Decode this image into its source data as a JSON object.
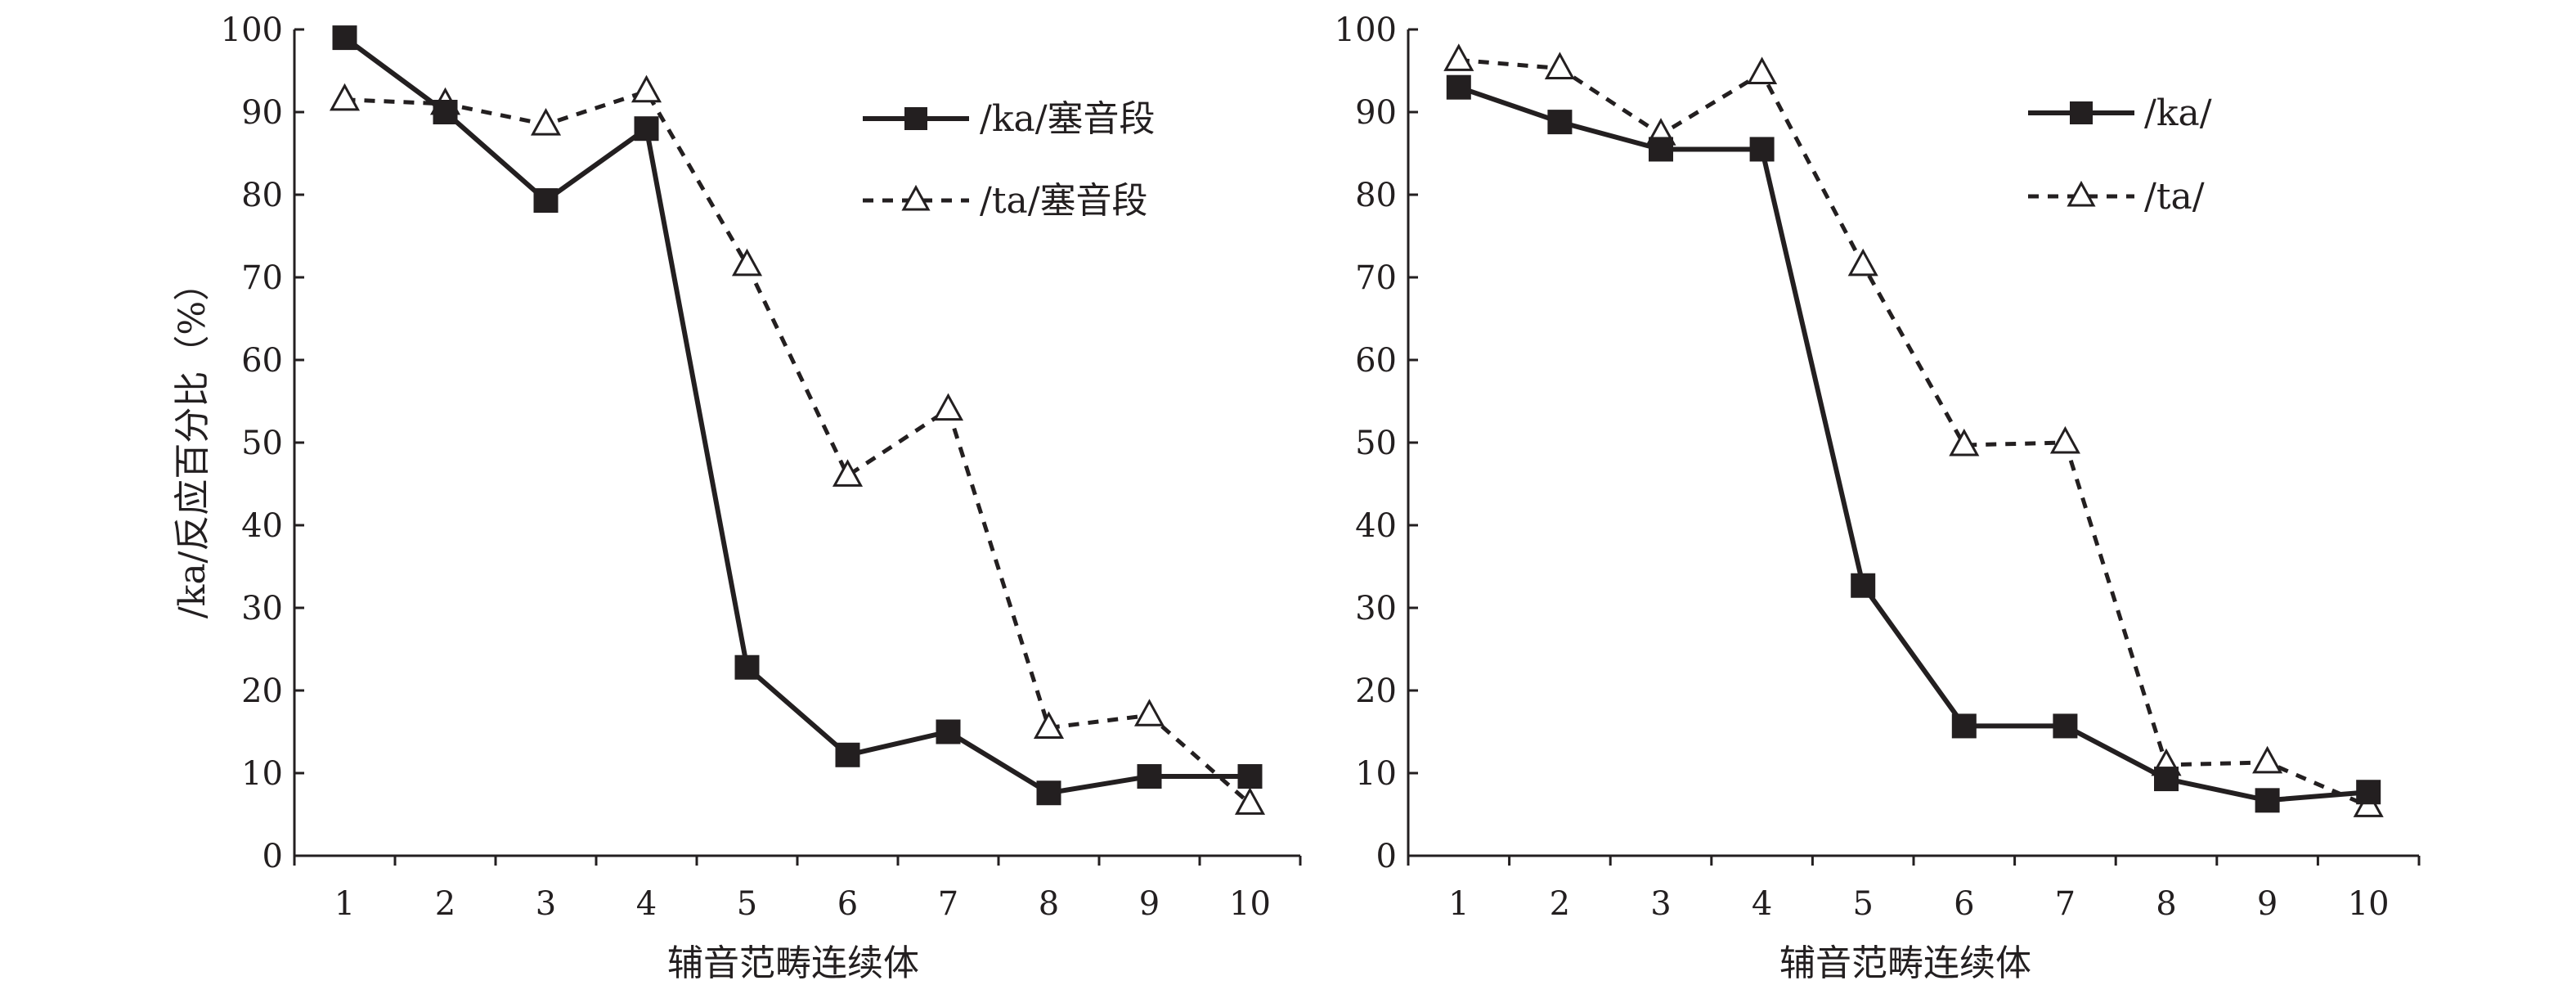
{
  "chart_data": [
    {
      "type": "line",
      "title": "",
      "xlabel": "辅音范畴连续体",
      "ylabel": "/ka/反应百分比（%）",
      "categories": [
        "1",
        "2",
        "3",
        "4",
        "5",
        "6",
        "7",
        "8",
        "9",
        "10"
      ],
      "ylim": [
        0,
        100
      ],
      "yticks": [
        "0",
        "10",
        "20",
        "30",
        "40",
        "50",
        "60",
        "70",
        "80",
        "90",
        "100"
      ],
      "grid": false,
      "legend_position": "top-right",
      "series": [
        {
          "name": "/ka/塞音段",
          "style": "solid",
          "marker": "square",
          "values": [
            99,
            90,
            79.3,
            88,
            22.8,
            12.2,
            15,
            7.6,
            9.6,
            9.6
          ]
        },
        {
          "name": "/ta/塞音段",
          "style": "dashed",
          "marker": "triangle",
          "values": [
            91.5,
            91,
            88.5,
            92.5,
            71.5,
            46,
            54,
            15.5,
            17,
            6.3
          ]
        }
      ]
    },
    {
      "type": "line",
      "title": "",
      "xlabel": "辅音范畴连续体",
      "ylabel": "",
      "categories": [
        "1",
        "2",
        "3",
        "4",
        "5",
        "6",
        "7",
        "8",
        "9",
        "10"
      ],
      "ylim": [
        0,
        100
      ],
      "yticks": [
        "0",
        "10",
        "20",
        "30",
        "40",
        "50",
        "60",
        "70",
        "80",
        "90",
        "100"
      ],
      "grid": false,
      "legend_position": "top-right",
      "series": [
        {
          "name": "/ka/",
          "style": "solid",
          "marker": "square",
          "values": [
            93,
            88.8,
            85.5,
            85.5,
            32.7,
            15.7,
            15.7,
            9.3,
            6.7,
            7.7
          ]
        },
        {
          "name": "/ta/",
          "style": "dashed",
          "marker": "triangle",
          "values": [
            96.3,
            95.3,
            87.3,
            94.7,
            71.5,
            49.7,
            50,
            11,
            11.3,
            6
          ]
        }
      ]
    }
  ]
}
